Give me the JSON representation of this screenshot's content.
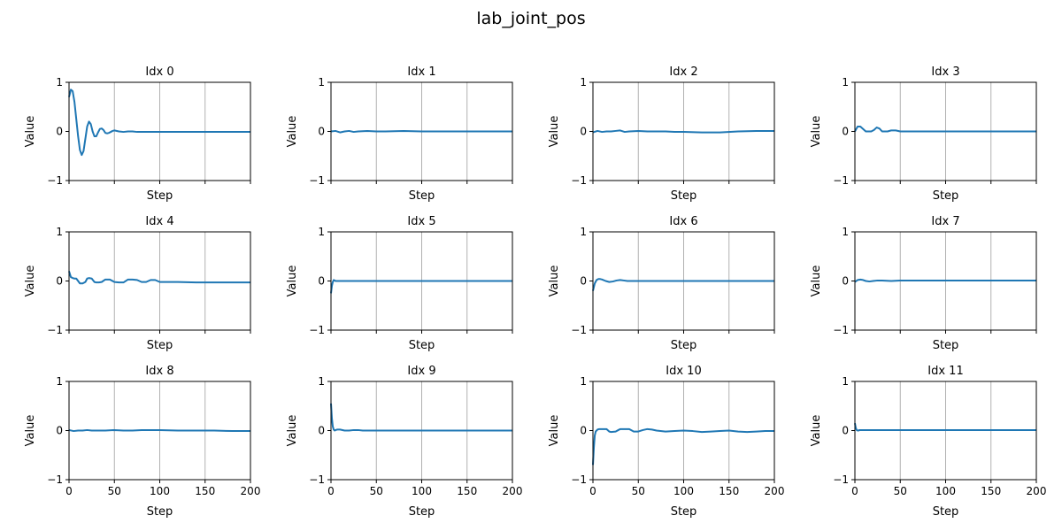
{
  "chart_data": {
    "type": "line",
    "title": "lab_joint_pos",
    "colors": {
      "series": "#1f77b4",
      "grid": "#b0b0b0"
    },
    "grid": {
      "x": true,
      "y": false
    },
    "layout": {
      "rows": 3,
      "cols": 4,
      "shared_x": true
    },
    "xlabel": "Step",
    "ylabel": "Value",
    "xlim": [
      0,
      200
    ],
    "ylim": [
      -1,
      1
    ],
    "xticks": [
      0,
      50,
      100,
      150,
      200
    ],
    "xtick_labels": [
      "0",
      "50",
      "100",
      "150",
      "200"
    ],
    "yticks": [
      -1,
      0,
      1
    ],
    "ytick_labels": [
      "−1",
      "0",
      "1"
    ],
    "subplots": [
      {
        "title": "Idx 0",
        "x": [
          0,
          2,
          4,
          6,
          8,
          10,
          12,
          14,
          16,
          18,
          20,
          22,
          24,
          26,
          28,
          30,
          32,
          34,
          36,
          38,
          40,
          42,
          44,
          46,
          48,
          50,
          55,
          60,
          65,
          70,
          75,
          80,
          90,
          100,
          120,
          140,
          160,
          180,
          200
        ],
        "y": [
          0.7,
          0.85,
          0.82,
          0.6,
          0.25,
          -0.1,
          -0.38,
          -0.48,
          -0.4,
          -0.15,
          0.1,
          0.2,
          0.15,
          0.0,
          -0.1,
          -0.1,
          -0.02,
          0.05,
          0.06,
          0.03,
          -0.03,
          -0.04,
          -0.03,
          -0.01,
          0.01,
          0.02,
          0.0,
          -0.01,
          0.0,
          0.0,
          -0.01,
          -0.01,
          -0.01,
          -0.01,
          -0.01,
          -0.01,
          -0.01,
          -0.01,
          -0.01
        ]
      },
      {
        "title": "Idx 1",
        "x": [
          0,
          5,
          10,
          15,
          20,
          25,
          30,
          40,
          50,
          60,
          80,
          100,
          120,
          140,
          160,
          180,
          200
        ],
        "y": [
          0.0,
          0.01,
          -0.02,
          0.0,
          0.01,
          -0.01,
          0.0,
          0.01,
          0.0,
          0.0,
          0.01,
          0.0,
          0.0,
          0.0,
          0.0,
          0.0,
          0.0
        ]
      },
      {
        "title": "Idx 2",
        "x": [
          0,
          5,
          10,
          15,
          20,
          25,
          30,
          35,
          40,
          50,
          60,
          70,
          80,
          90,
          100,
          120,
          140,
          160,
          180,
          200
        ],
        "y": [
          -0.02,
          0.01,
          -0.01,
          0.0,
          0.0,
          0.01,
          0.02,
          -0.01,
          0.0,
          0.01,
          0.0,
          0.0,
          0.0,
          -0.01,
          -0.01,
          -0.02,
          -0.02,
          0.0,
          0.01,
          0.01
        ]
      },
      {
        "title": "Idx 3",
        "x": [
          0,
          3,
          6,
          9,
          12,
          15,
          18,
          21,
          24,
          27,
          30,
          33,
          36,
          40,
          45,
          50,
          60,
          70,
          80,
          100,
          120,
          140,
          160,
          180,
          200
        ],
        "y": [
          0.0,
          0.1,
          0.1,
          0.05,
          0.0,
          0.0,
          0.0,
          0.03,
          0.08,
          0.06,
          0.0,
          0.0,
          0.0,
          0.02,
          0.02,
          0.0,
          0.0,
          0.0,
          0.0,
          0.0,
          0.0,
          0.0,
          0.0,
          0.0,
          0.0
        ]
      },
      {
        "title": "Idx 4",
        "x": [
          0,
          2,
          4,
          6,
          8,
          10,
          12,
          15,
          18,
          20,
          22,
          25,
          28,
          30,
          33,
          36,
          40,
          45,
          50,
          55,
          60,
          65,
          70,
          75,
          80,
          85,
          90,
          95,
          100,
          120,
          140,
          160,
          180,
          200
        ],
        "y": [
          0.2,
          0.08,
          0.06,
          0.05,
          0.05,
          0.0,
          -0.05,
          -0.05,
          -0.02,
          0.05,
          0.06,
          0.05,
          -0.02,
          -0.03,
          -0.03,
          -0.02,
          0.03,
          0.03,
          -0.02,
          -0.03,
          -0.03,
          0.03,
          0.03,
          0.02,
          -0.02,
          -0.02,
          0.02,
          0.02,
          -0.02,
          -0.02,
          -0.03,
          -0.03,
          -0.03,
          -0.03
        ]
      },
      {
        "title": "Idx 5",
        "x": [
          0,
          1,
          2,
          3,
          4,
          5,
          10,
          20,
          40,
          60,
          80,
          100,
          120,
          140,
          160,
          180,
          200
        ],
        "y": [
          -0.25,
          -0.1,
          -0.02,
          0.02,
          0.01,
          0.0,
          0.0,
          0.0,
          0.0,
          0.0,
          0.0,
          0.0,
          0.0,
          0.0,
          0.0,
          0.0,
          0.0
        ]
      },
      {
        "title": "Idx 6",
        "x": [
          0,
          2,
          4,
          6,
          8,
          10,
          14,
          18,
          22,
          26,
          30,
          34,
          38,
          42,
          46,
          50,
          60,
          80,
          100,
          120,
          140,
          160,
          180,
          200
        ],
        "y": [
          -0.2,
          -0.05,
          0.02,
          0.04,
          0.04,
          0.03,
          0.0,
          -0.02,
          -0.01,
          0.01,
          0.02,
          0.01,
          0.0,
          0.0,
          0.0,
          0.0,
          0.0,
          0.0,
          0.0,
          0.0,
          0.0,
          0.0,
          0.0,
          0.0
        ]
      },
      {
        "title": "Idx 7",
        "x": [
          0,
          3,
          6,
          9,
          12,
          16,
          20,
          25,
          30,
          40,
          50,
          60,
          80,
          100,
          120,
          140,
          160,
          180,
          200
        ],
        "y": [
          -0.02,
          0.02,
          0.03,
          0.02,
          0.0,
          -0.01,
          0.0,
          0.01,
          0.01,
          0.0,
          0.01,
          0.01,
          0.01,
          0.01,
          0.01,
          0.01,
          0.01,
          0.01,
          0.01
        ]
      },
      {
        "title": "Idx 8",
        "x": [
          0,
          5,
          10,
          15,
          20,
          25,
          30,
          40,
          50,
          60,
          70,
          80,
          90,
          100,
          120,
          140,
          160,
          180,
          200
        ],
        "y": [
          0.01,
          -0.01,
          0.0,
          0.0,
          0.01,
          0.0,
          0.0,
          0.0,
          0.01,
          0.0,
          0.0,
          0.01,
          0.01,
          0.01,
          0.0,
          0.0,
          0.0,
          -0.01,
          -0.01
        ]
      },
      {
        "title": "Idx 9",
        "x": [
          0,
          1,
          2,
          3,
          4,
          5,
          7,
          10,
          15,
          20,
          25,
          30,
          35,
          40,
          50,
          60,
          80,
          100,
          120,
          140,
          160,
          180,
          200
        ],
        "y": [
          0.55,
          0.25,
          0.08,
          0.02,
          0.0,
          0.01,
          0.02,
          0.02,
          0.0,
          0.0,
          0.01,
          0.01,
          0.0,
          0.0,
          0.0,
          0.0,
          0.0,
          0.0,
          0.0,
          0.0,
          0.0,
          0.0,
          0.0
        ]
      },
      {
        "title": "Idx 10",
        "x": [
          0,
          1,
          2,
          3,
          5,
          7,
          10,
          15,
          18,
          20,
          25,
          28,
          30,
          35,
          40,
          45,
          50,
          55,
          60,
          65,
          70,
          80,
          90,
          100,
          110,
          120,
          130,
          140,
          150,
          160,
          170,
          180,
          190,
          200
        ],
        "y": [
          -0.7,
          -0.35,
          -0.1,
          -0.02,
          0.02,
          0.03,
          0.03,
          0.03,
          -0.02,
          -0.03,
          -0.02,
          0.01,
          0.03,
          0.03,
          0.03,
          -0.02,
          -0.02,
          0.01,
          0.03,
          0.02,
          0.0,
          -0.02,
          -0.01,
          0.0,
          -0.01,
          -0.03,
          -0.02,
          -0.01,
          0.0,
          -0.02,
          -0.03,
          -0.02,
          -0.01,
          -0.01
        ]
      },
      {
        "title": "Idx 11",
        "x": [
          0,
          1,
          2,
          3,
          4,
          5,
          10,
          20,
          40,
          60,
          80,
          100,
          120,
          140,
          160,
          180,
          200
        ],
        "y": [
          0.15,
          0.05,
          0.01,
          0.0,
          0.0,
          0.01,
          0.01,
          0.01,
          0.01,
          0.01,
          0.01,
          0.01,
          0.01,
          0.01,
          0.01,
          0.01,
          0.01
        ]
      }
    ]
  }
}
